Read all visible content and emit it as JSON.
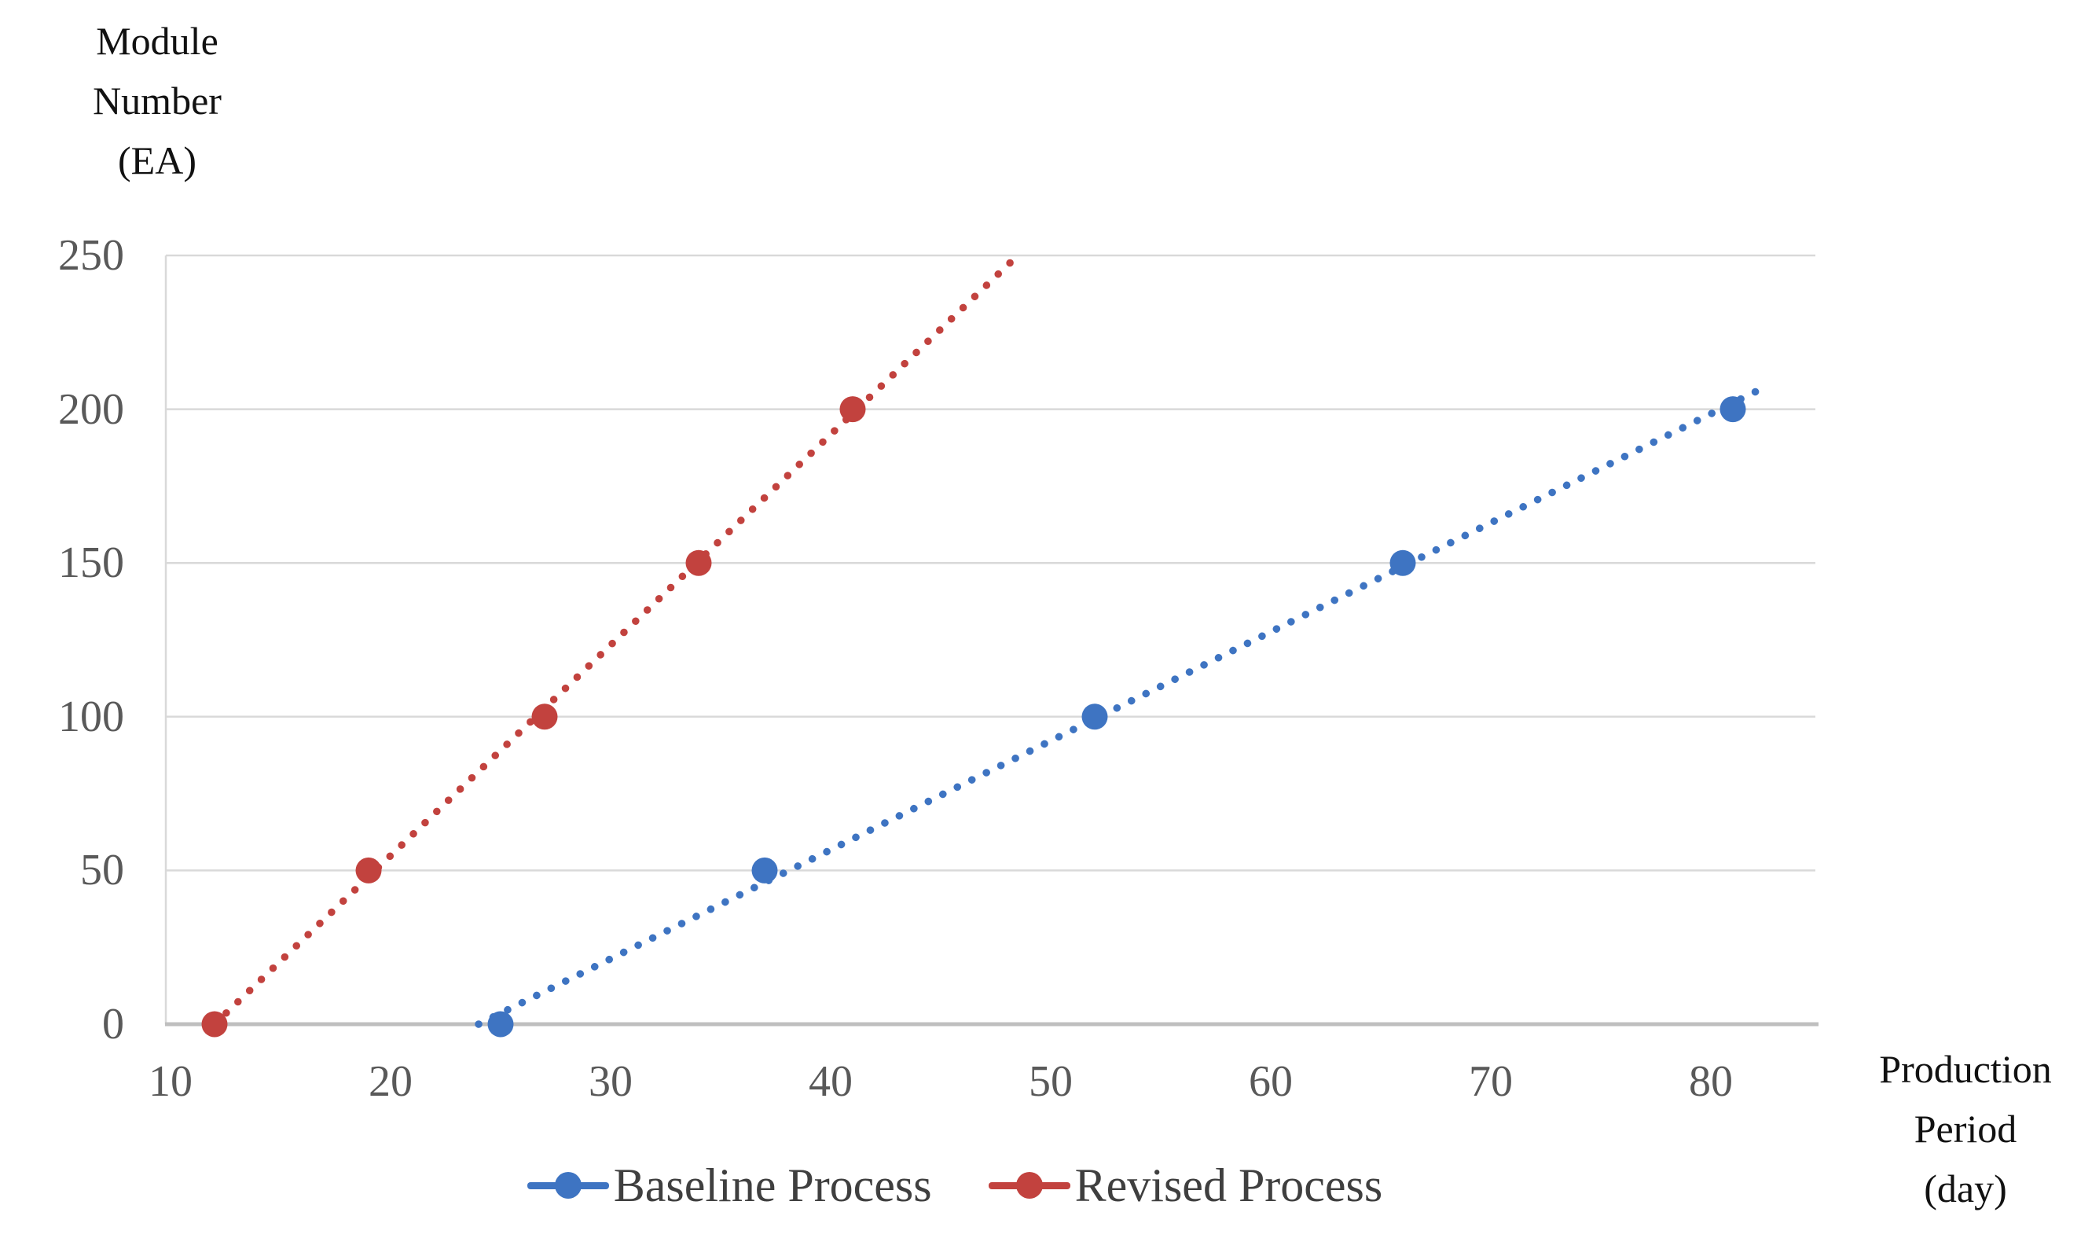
{
  "y_axis_title": {
    "line1": "Module",
    "line2": "Number",
    "line3": "(EA)"
  },
  "x_axis_title": {
    "line1": "Production",
    "line2": "Period",
    "line3": "(day)"
  },
  "colors": {
    "baseline_blue": "#3E74C2",
    "revised_red": "#C2423E",
    "gridline": "#D9D9D9",
    "axis_line": "#BFBFBF",
    "tick_text": "#595959",
    "title_text": "#111111",
    "legend_text": "#3F3F3F",
    "background": "#FFFFFF"
  },
  "legend": {
    "items": [
      {
        "label": "Baseline Process",
        "color": "#3E74C2",
        "marker": "line-dot"
      },
      {
        "label": "Revised Process",
        "color": "#C2423E",
        "marker": "line-dot"
      }
    ]
  },
  "chart_data": {
    "type": "scatter",
    "title": "",
    "xlabel": "Production Period (day)",
    "ylabel": "Module Number (EA)",
    "xlim": [
      10,
      85
    ],
    "ylim": [
      0,
      250
    ],
    "x_ticks": [
      10,
      20,
      30,
      40,
      50,
      60,
      70,
      80
    ],
    "y_ticks": [
      0,
      50,
      100,
      150,
      200,
      250
    ],
    "grid": "horizontal",
    "legend_position": "bottom-center",
    "series": [
      {
        "name": "Baseline Process",
        "color": "#3E74C2",
        "marker": "circle",
        "line_style": "dotted",
        "x": [
          25,
          37,
          52,
          66,
          81
        ],
        "y": [
          0,
          50,
          100,
          150,
          200
        ],
        "trendline": {
          "from": [
            24,
            0
          ],
          "to": [
            82.4,
            207
          ]
        }
      },
      {
        "name": "Revised Process",
        "color": "#C2423E",
        "marker": "circle",
        "line_style": "dotted",
        "x": [
          12,
          19,
          27,
          34,
          41
        ],
        "y": [
          0,
          50,
          100,
          150,
          200
        ],
        "trendline": {
          "from": [
            12,
            0
          ],
          "to": [
            48.5,
            250
          ]
        }
      }
    ]
  }
}
